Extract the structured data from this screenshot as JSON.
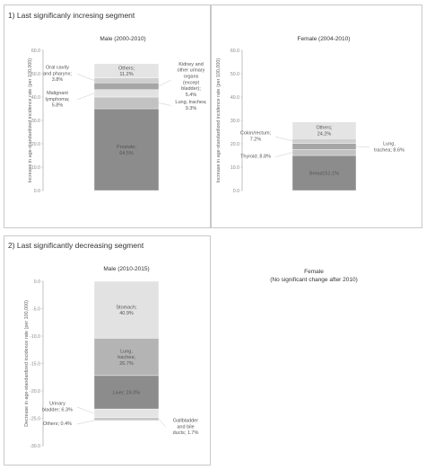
{
  "sections": {
    "top_title": "1) Last significanly incresing segment",
    "bottom_title": "2) Last significantly decreasing segment"
  },
  "female_note": {
    "title": "Female",
    "subtitle": "(No significant change after 2010)"
  },
  "colors": {
    "axis": "#999999",
    "tick_text": "#888888",
    "label_text": "#555555"
  },
  "chart_data": [
    {
      "id": "male_inc",
      "type": "bar",
      "stacked": true,
      "title": "Male (2000-2010)",
      "ylabel": "Increase in age-standardized incidence rate (per 100,000)",
      "ylim": [
        0,
        60
      ],
      "yticks": [
        "0.0",
        "10.0",
        "20.0",
        "30.0",
        "40.0",
        "50.0",
        "60.0"
      ],
      "grid": false,
      "series": [
        {
          "name": "Prostate",
          "value": 35.0,
          "color": "#8c8c8c",
          "label": [
            "Prostate;",
            "64.5%"
          ],
          "label_pos": "inside"
        },
        {
          "name": "Lung, trachea",
          "value": 5.0,
          "color": "#c2c2c2",
          "label": [
            "Lung, trachea;",
            "9.3%"
          ],
          "label_pos": "right"
        },
        {
          "name": "Malignant lymphoma",
          "value": 3.2,
          "color": "#e2e2e2",
          "label": [
            "Malignant",
            "lymphoma;",
            "5.8%"
          ],
          "label_pos": "left"
        },
        {
          "name": "Kidney and other urinary organs (except bladder)",
          "value": 2.9,
          "color": "#a6a6a6",
          "label": [
            "Kidney and",
            "other urinary",
            "organs",
            "(except",
            "bladder);",
            "5.4%"
          ],
          "label_pos": "right"
        },
        {
          "name": "Oral cavity and pharynx",
          "value": 2.1,
          "color": "#cfcfcf",
          "label": [
            "Oral cavity",
            "and pharynx;",
            "3.8%"
          ],
          "label_pos": "left"
        },
        {
          "name": "Others",
          "value": 6.1,
          "color": "#e4e4e4",
          "label": [
            "Others;",
            "11.2%"
          ],
          "label_pos": "inside"
        }
      ]
    },
    {
      "id": "female_inc",
      "type": "bar",
      "stacked": true,
      "title": "Female (2004-2010)",
      "ylabel": "Increase in age-standardized incidence rate (per 100,000)",
      "ylim": [
        0,
        60
      ],
      "yticks": [
        "0.0",
        "10.0",
        "20.0",
        "30.0",
        "40.0",
        "50.0",
        "60.0"
      ],
      "grid": false,
      "series": [
        {
          "name": "Breast",
          "value": 15.0,
          "color": "#8c8c8c",
          "label": [
            "Breast;51.1%"
          ],
          "label_pos": "inside"
        },
        {
          "name": "Thyroid",
          "value": 2.6,
          "color": "#c2c2c2",
          "label": [
            "Thyroid; 8.8%"
          ],
          "label_pos": "left"
        },
        {
          "name": "Lung, trachea",
          "value": 2.5,
          "color": "#a6a6a6",
          "label": [
            "Lung,",
            "trachea; 8.6%"
          ],
          "label_pos": "right"
        },
        {
          "name": "Colon/rectum",
          "value": 2.1,
          "color": "#cfcfcf",
          "label": [
            "Colon/rectum;",
            "7.2%"
          ],
          "label_pos": "left"
        },
        {
          "name": "Others",
          "value": 7.1,
          "color": "#e4e4e4",
          "label": [
            "Others;",
            "24.2%"
          ],
          "label_pos": "inside"
        }
      ]
    },
    {
      "id": "male_dec",
      "type": "bar",
      "stacked": true,
      "title": "Male (2010-2015)",
      "ylabel": "Decrease in age-standardized incidence rate (per 100,000)",
      "ylim": [
        -30,
        0
      ],
      "yticks": [
        "0.0",
        "-5.0",
        "-10.0",
        "-15.0",
        "-20.0",
        "-25.0",
        "-30.0"
      ],
      "grid": false,
      "series": [
        {
          "name": "Stomach",
          "value": -10.4,
          "color": "#e2e2e2",
          "label": [
            "Stomach;",
            "40.9%"
          ],
          "label_pos": "inside"
        },
        {
          "name": "Lung, trachea",
          "value": -6.8,
          "color": "#b4b4b4",
          "label": [
            "Lung,",
            "trachea;",
            "26.7%"
          ],
          "label_pos": "inside"
        },
        {
          "name": "Liver",
          "value": -6.1,
          "color": "#8c8c8c",
          "label": [
            "Liver; 24.0%"
          ],
          "label_pos": "inside"
        },
        {
          "name": "Urinary bladder",
          "value": -1.6,
          "color": "#e4e4e4",
          "label": [
            "Urinary",
            "bladder; 6.3%"
          ],
          "label_pos": "left"
        },
        {
          "name": "Gallbladder and bile ducts",
          "value": -0.45,
          "color": "#c2c2c2",
          "label": [
            "Gallbladder",
            "and bile",
            "ducts; 1.7%"
          ],
          "label_pos": "right"
        },
        {
          "name": "Others",
          "value": -0.1,
          "color": "#8c8c8c",
          "label": [
            "Others; 0.4%"
          ],
          "label_pos": "left"
        }
      ]
    }
  ]
}
